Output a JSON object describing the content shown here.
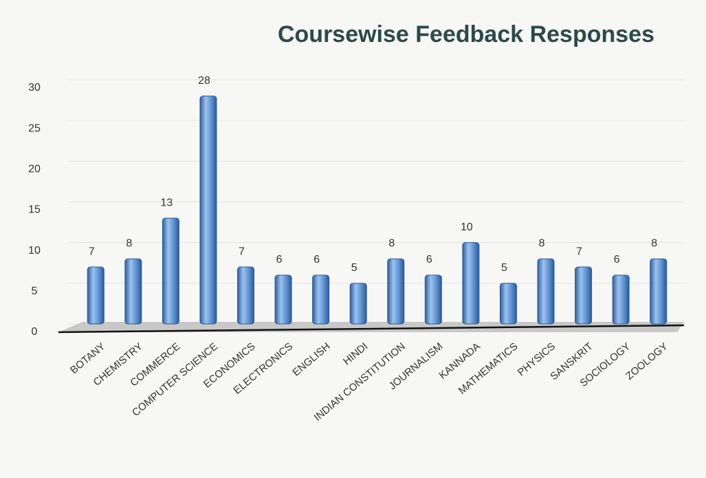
{
  "chart_data": {
    "type": "bar",
    "title": "Coursewise Feedback Responses",
    "categories": [
      "BOTANY",
      "CHEMISTRY",
      "COMMERCE",
      "COMPUTER SCIENCE",
      "ECONOMICS",
      "ELECTRONICS",
      "ENGLISH",
      "HINDI",
      "INDIAN CONSTITUTION",
      "JOURNALISM",
      "KANNADA",
      "MATHEMATICS",
      "PHYSICS",
      "SANSKRIT",
      "SOCIOLOGY",
      "ZOOLOGY"
    ],
    "values": [
      7,
      8,
      13,
      28,
      7,
      6,
      6,
      5,
      8,
      6,
      10,
      5,
      8,
      7,
      6,
      8
    ],
    "color": "#5b8fd0",
    "ylim": [
      0,
      30
    ],
    "yticks": [
      0,
      5,
      10,
      15,
      20,
      25,
      30
    ],
    "grid": true
  }
}
